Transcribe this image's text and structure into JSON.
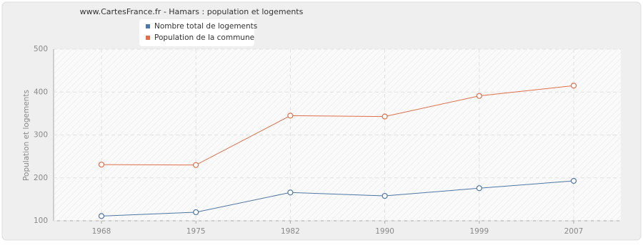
{
  "chart_data": {
    "type": "line",
    "title": "www.CartesFrance.fr - Hamars : population et logements",
    "y_label": "Population et logements",
    "categories": [
      "1968",
      "1975",
      "1982",
      "1990",
      "1999",
      "2007"
    ],
    "series": [
      {
        "name": "Nombre total de logements",
        "color": "#4f77a3",
        "values": [
          111,
          120,
          166,
          158,
          176,
          193
        ]
      },
      {
        "name": "Population de la commune",
        "color": "#e06f4b",
        "values": [
          231,
          230,
          345,
          343,
          391,
          415
        ]
      }
    ],
    "ylim": [
      100,
      500
    ],
    "yticks": [
      100,
      200,
      300,
      400,
      500
    ],
    "grid": true
  }
}
